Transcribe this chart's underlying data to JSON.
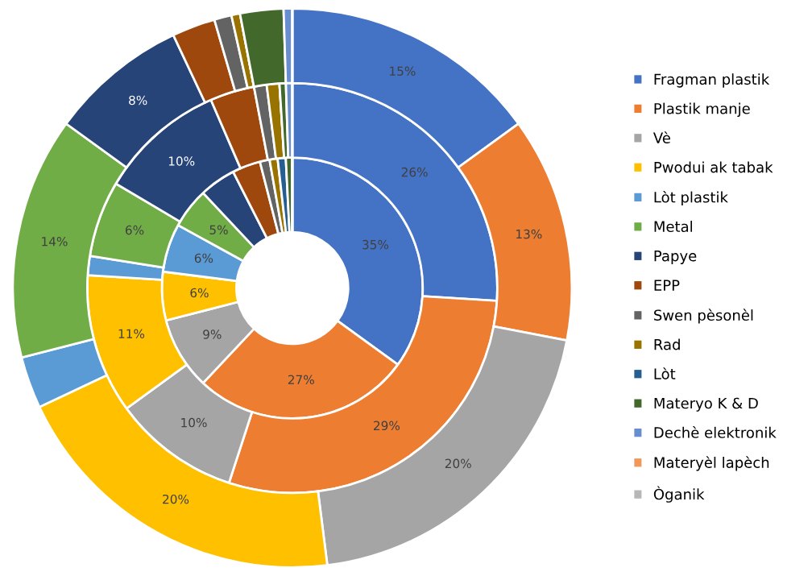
{
  "chart_data": {
    "type": "donut",
    "categories": [
      "Fragman plastik",
      "Plastik manje",
      "Vè",
      "Pwodui ak tabak",
      "Lòt plastik",
      "Metal",
      "Papye",
      "EPP",
      "Swen pèsonèl",
      "Rad",
      "Lòt",
      "Materyo K & D",
      "Dechè elektronik",
      "Materyèl lapèch",
      "Òganik"
    ],
    "colors": [
      "#4472c4",
      "#ed7d31",
      "#a5a5a5",
      "#ffc000",
      "#5b9bd5",
      "#70ad47",
      "#264478",
      "#9e480e",
      "#636363",
      "#997300",
      "#255e91",
      "#43682b",
      "#698ed0",
      "#f1975a",
      "#b7b7b7"
    ],
    "series": [
      {
        "values": [
          35,
          27,
          9,
          6,
          6,
          5,
          4.5,
          3.5,
          1.2,
          1,
          1,
          0.8,
          0,
          0,
          0
        ],
        "value_labels": [
          "35%",
          "27%",
          "9%",
          "6%",
          "6%",
          "5%",
          null,
          null,
          null,
          null,
          null,
          null,
          null,
          null,
          null
        ]
      },
      {
        "values": [
          26,
          29,
          10,
          11,
          1.5,
          6,
          10,
          3.5,
          1,
          1,
          0,
          0.5,
          0.5,
          0,
          0
        ],
        "value_labels": [
          "26%",
          "29%",
          "10%",
          "11%",
          null,
          "6%",
          "10%",
          null,
          null,
          null,
          null,
          null,
          null,
          null,
          null
        ]
      },
      {
        "values": [
          15,
          13,
          20,
          20,
          3,
          14,
          8,
          2.5,
          1,
          0.5,
          0,
          2.5,
          0.5,
          0,
          0
        ],
        "value_labels": [
          "15%",
          "13%",
          "20%",
          "20%",
          null,
          "14%",
          "8%",
          null,
          null,
          null,
          null,
          null,
          null,
          null,
          null
        ]
      }
    ],
    "legend": "right"
  }
}
